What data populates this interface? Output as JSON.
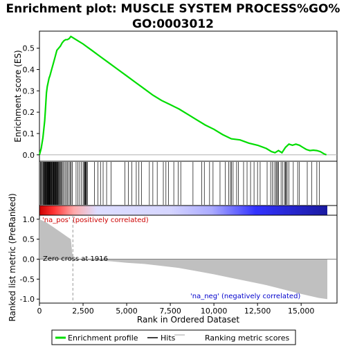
{
  "chart_data": {
    "type": "line",
    "title": "Enrichment plot: MUSCLE SYSTEM PROCESS%GO%GO:0003012",
    "x_range": [
      0,
      16500
    ],
    "x_ticks": [
      0,
      2500,
      5000,
      7500,
      10000,
      12500,
      15000
    ],
    "x_tick_labels": [
      "0",
      "2,500",
      "5,000",
      "7,500",
      "10,000",
      "12,500",
      "15,000"
    ],
    "xlabel": "Rank in Ordered Dataset",
    "panels": {
      "es": {
        "ylabel": "Enrichment score (ES)",
        "ylim": [
          -0.03,
          0.58
        ],
        "y_ticks": [
          0.0,
          0.1,
          0.2,
          0.3,
          0.4,
          0.5
        ],
        "y_tick_labels": [
          "0.0",
          "0.1",
          "0.2",
          "0.3",
          "0.4",
          "0.5"
        ]
      },
      "metric": {
        "ylabel": "Ranked list metric (PreRanked)",
        "ylim": [
          -1.1,
          1.1
        ],
        "y_ticks": [
          1.0,
          0.5,
          0.0,
          -0.5,
          -1.0
        ],
        "y_tick_labels": [
          "1.0",
          "0.5",
          "0.0",
          "-0.5",
          "-1.0"
        ]
      }
    },
    "series": [
      {
        "name": "Enrichment profile",
        "color": "#00dd00",
        "x": [
          0,
          100,
          200,
          250,
          300,
          350,
          400,
          450,
          500,
          550,
          600,
          700,
          800,
          900,
          1000,
          1100,
          1200,
          1300,
          1400,
          1500,
          1600,
          1700,
          1800,
          1900,
          2100,
          2500,
          3000,
          3500,
          4000,
          4500,
          5000,
          5500,
          6000,
          6500,
          7000,
          7500,
          8000,
          8500,
          9000,
          9500,
          10000,
          10500,
          11000,
          11500,
          12000,
          12500,
          13000,
          13300,
          13500,
          13700,
          13900,
          14100,
          14300,
          14500,
          14700,
          14900,
          15100,
          15300,
          15500,
          15700,
          15900,
          16100,
          16300,
          16450
        ],
        "y": [
          0.0,
          0.03,
          0.08,
          0.12,
          0.16,
          0.22,
          0.29,
          0.32,
          0.34,
          0.36,
          0.37,
          0.4,
          0.43,
          0.46,
          0.49,
          0.5,
          0.51,
          0.525,
          0.535,
          0.54,
          0.54,
          0.545,
          0.555,
          0.55,
          0.54,
          0.52,
          0.49,
          0.46,
          0.43,
          0.4,
          0.37,
          0.34,
          0.31,
          0.28,
          0.255,
          0.235,
          0.215,
          0.19,
          0.165,
          0.14,
          0.12,
          0.095,
          0.075,
          0.07,
          0.055,
          0.045,
          0.03,
          0.015,
          0.01,
          0.02,
          0.01,
          0.035,
          0.05,
          0.045,
          0.05,
          0.045,
          0.035,
          0.025,
          0.02,
          0.022,
          0.02,
          0.015,
          0.005,
          0.0
        ]
      },
      {
        "name": "Ranking metric scores",
        "color": "#c0c0c0",
        "x": [
          0,
          200,
          400,
          600,
          800,
          1000,
          1200,
          1400,
          1600,
          1800,
          1916,
          2100,
          2500,
          3000,
          3500,
          4000,
          5000,
          6000,
          7000,
          8000,
          9000,
          10000,
          11000,
          12000,
          13000,
          14000,
          15000,
          16000,
          16500
        ],
        "y": [
          1.0,
          0.96,
          0.92,
          0.86,
          0.8,
          0.74,
          0.68,
          0.62,
          0.56,
          0.5,
          0.0,
          -0.01,
          -0.02,
          -0.03,
          -0.04,
          -0.05,
          -0.09,
          -0.12,
          -0.17,
          -0.22,
          -0.3,
          -0.38,
          -0.47,
          -0.56,
          -0.65,
          -0.76,
          -0.87,
          -0.97,
          -1.0
        ]
      }
    ],
    "hits": [
      60,
      90,
      120,
      170,
      210,
      250,
      270,
      300,
      330,
      350,
      380,
      400,
      420,
      440,
      460,
      480,
      500,
      520,
      540,
      560,
      580,
      600,
      620,
      650,
      680,
      700,
      720,
      760,
      780,
      800,
      830,
      850,
      880,
      900,
      930,
      950,
      980,
      1000,
      1030,
      1060,
      1090,
      1120,
      1160,
      1200,
      1250,
      1300,
      1350,
      1420,
      1480,
      1560,
      1620,
      1700,
      1760,
      1820,
      1880,
      2100,
      2200,
      2300,
      2400,
      2500,
      2550,
      2600,
      2620,
      2650,
      2680,
      2700,
      2750,
      3150,
      3350,
      3500,
      3650,
      3850,
      4100,
      4900,
      5100,
      5300,
      5550,
      5700,
      5850,
      6300,
      6500,
      6750,
      7100,
      7250,
      7400,
      7700,
      7950,
      8100,
      8800,
      9300,
      9450,
      9750,
      9950,
      10350,
      10650,
      10850,
      10950,
      11000,
      11100,
      11300,
      11400,
      11700,
      11900,
      12100,
      12300,
      12500,
      12650,
      13050,
      13250,
      13350,
      13450,
      13550,
      13600,
      13650,
      13700,
      13850,
      13950,
      14050,
      14100,
      14150,
      14200,
      14300,
      14550,
      14800,
      14900,
      15350,
      15600,
      15900,
      16050
    ],
    "annotations": {
      "pos_label": "'na_pos' (positively correlated)",
      "neg_label": "'na_neg' (negatively correlated)",
      "zero_cross": "Zero cross at 1916",
      "zero_cross_x": 1916
    },
    "legend": {
      "placement": "bottom",
      "items": [
        "Enrichment profile",
        "Hits",
        "Ranking metric scores"
      ]
    },
    "grid": false
  }
}
